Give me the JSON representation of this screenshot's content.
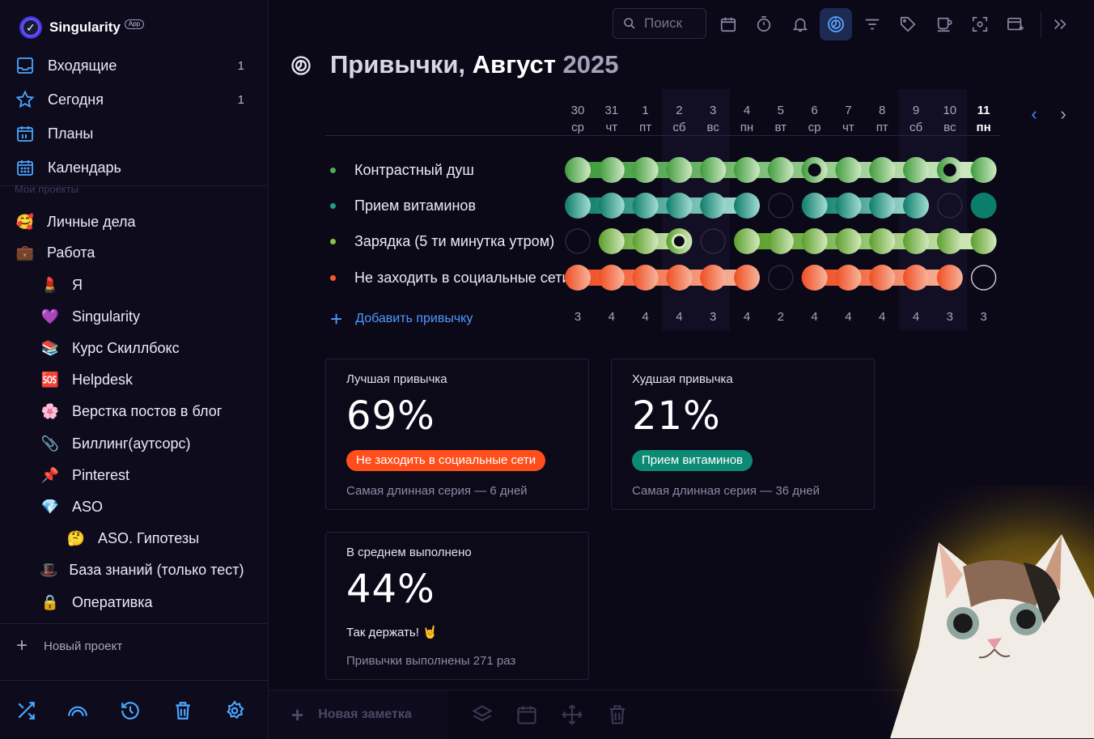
{
  "app": {
    "name": "Singularity",
    "badge": "App"
  },
  "sidebar": {
    "nav": [
      {
        "label": "Входящие",
        "count": "1",
        "icon": "inbox-icon"
      },
      {
        "label": "Сегодня",
        "count": "1",
        "icon": "star-icon"
      },
      {
        "label": "Планы",
        "count": "",
        "icon": "calendar-11-icon"
      },
      {
        "label": "Календарь",
        "count": "",
        "icon": "calendar-grid-icon"
      }
    ],
    "section_label": "Мои проекты",
    "projects": [
      {
        "emoji": "🥰",
        "label": "Личные дела",
        "level": 0
      },
      {
        "emoji": "💼",
        "label": "Работа",
        "level": 0
      },
      {
        "emoji": "💄",
        "label": "Я",
        "level": 1
      },
      {
        "emoji": "💜",
        "label": "Singularity",
        "level": 1
      },
      {
        "emoji": "📚",
        "label": "Курс Скиллбокс",
        "level": 1
      },
      {
        "emoji": "🆘",
        "label": "Helpdesk",
        "level": 1
      },
      {
        "emoji": "🌸",
        "label": "Верстка постов в блог",
        "level": 1
      },
      {
        "emoji": "📎",
        "label": "Биллинг(аутсорс)",
        "level": 1
      },
      {
        "emoji": "📌",
        "label": "Pinterest",
        "level": 1
      },
      {
        "emoji": "💎",
        "label": "ASO",
        "level": 1
      },
      {
        "emoji": "🤔",
        "label": "ASO. Гипотезы",
        "level": 2
      },
      {
        "emoji": "🎩",
        "label": "База знаний (только тест)",
        "level": 1
      },
      {
        "emoji": "🔒",
        "label": "Оперативка",
        "level": 1
      }
    ],
    "new_project": "Новый проект",
    "bottom_icons": [
      "shuffle-icon",
      "rainbow-icon",
      "history-icon",
      "trash-icon",
      "settings-icon"
    ]
  },
  "topbar": {
    "search_placeholder": "Поиск",
    "icons": [
      "calendar-icon",
      "timer-icon",
      "bell-icon",
      "habits-icon",
      "filter-icon",
      "tag-icon",
      "coffee-icon",
      "focus-icon",
      "window-add-icon",
      "collapse-icon"
    ],
    "active_icon": "habits-icon"
  },
  "page": {
    "title_prefix": "Привычки,",
    "month": "Август",
    "year": "2025"
  },
  "days": [
    {
      "num": "30",
      "dow": "ср",
      "weekend": false
    },
    {
      "num": "31",
      "dow": "чт",
      "weekend": false
    },
    {
      "num": "1",
      "dow": "пт",
      "weekend": false
    },
    {
      "num": "2",
      "dow": "сб",
      "weekend": true
    },
    {
      "num": "3",
      "dow": "вс",
      "weekend": true
    },
    {
      "num": "4",
      "dow": "пн",
      "weekend": false
    },
    {
      "num": "5",
      "dow": "вт",
      "weekend": false
    },
    {
      "num": "6",
      "dow": "ср",
      "weekend": false
    },
    {
      "num": "7",
      "dow": "чт",
      "weekend": false
    },
    {
      "num": "8",
      "dow": "пт",
      "weekend": false
    },
    {
      "num": "9",
      "dow": "сб",
      "weekend": true
    },
    {
      "num": "10",
      "dow": "вс",
      "weekend": true
    },
    {
      "num": "11",
      "dow": "пн",
      "weekend": false,
      "today": true
    }
  ],
  "habits": [
    {
      "name": "Контрастный душ",
      "color": "#4caf50",
      "done": [
        1,
        1,
        1,
        1,
        1,
        1,
        1,
        1,
        1,
        1,
        1,
        1,
        1
      ],
      "marks": [
        7,
        11
      ],
      "dark": "#3f9b3c",
      "light": "#cfe9c4"
    },
    {
      "name": "Прием витаминов",
      "color": "#1aa087",
      "done": [
        1,
        1,
        1,
        1,
        1,
        1,
        0,
        1,
        1,
        1,
        1,
        0,
        1
      ],
      "marks": [],
      "dark": "#0d7d6b",
      "light": "#a4dcd2"
    },
    {
      "name": "Зарядка (5 ти минутка утром)",
      "color": "#8bc34a",
      "done": [
        0,
        1,
        1,
        1,
        0,
        1,
        1,
        1,
        1,
        1,
        1,
        1,
        1
      ],
      "marks": [
        3
      ],
      "dark": "#5a9e2b",
      "light": "#d4e9bd"
    },
    {
      "name": "Не заходить в социальные сети",
      "color": "#ff5722",
      "done": [
        1,
        1,
        1,
        1,
        1,
        1,
        0,
        1,
        1,
        1,
        1,
        1,
        0
      ],
      "marks": [],
      "dark": "#f04d22",
      "light": "#f7b59c"
    }
  ],
  "add_habit": "Добавить привычку",
  "counts": [
    "3",
    "4",
    "4",
    "4",
    "3",
    "4",
    "2",
    "4",
    "4",
    "4",
    "4",
    "3",
    "3"
  ],
  "cards": {
    "best": {
      "title": "Лучшая привычка",
      "value": "69%",
      "habit": "Не заходить в социальные сети",
      "habit_color": "#ff4d1c",
      "streak": "Самая длинная серия — 6 дней"
    },
    "worst": {
      "title": "Худшая привычка",
      "value": "21%",
      "habit": "Прием витаминов",
      "habit_color": "#0d8a76",
      "streak": "Самая длинная серия — 36 дней"
    },
    "average": {
      "title": "В среднем выполнено",
      "value": "44%",
      "cheer": "Так держать! 🤘",
      "total": "Привычки выполнены 271 раз"
    }
  },
  "footer": {
    "new_note": "Новая заметка",
    "icons": [
      "layers-icon",
      "calendar-icon",
      "move-icon",
      "trash-icon"
    ]
  }
}
